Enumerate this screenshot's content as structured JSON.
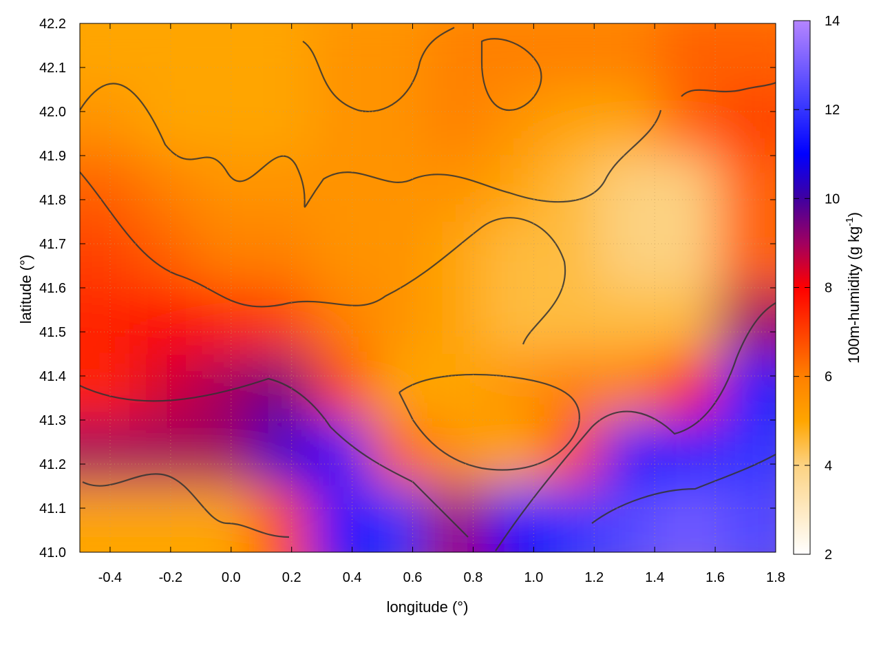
{
  "chart_data": {
    "type": "heatmap",
    "title": "",
    "xlabel": "longitude (°)",
    "ylabel": "latitude (°)",
    "colorbar_label": "100m-humidity (g kg",
    "colorbar_label_sup": "-1",
    "colorbar_label_end": ")",
    "xlim": [
      -0.5,
      1.8
    ],
    "ylim": [
      41.0,
      42.2
    ],
    "clim": [
      2,
      14
    ],
    "x_ticks": [
      "-0.4",
      "-0.2",
      "0.0",
      "0.2",
      "0.4",
      "0.6",
      "0.8",
      "1.0",
      "1.2",
      "1.4",
      "1.6",
      "1.8"
    ],
    "x_tick_values": [
      -0.4,
      -0.2,
      0.0,
      0.2,
      0.4,
      0.6,
      0.8,
      1.0,
      1.2,
      1.4,
      1.6,
      1.8
    ],
    "y_ticks": [
      "41.0",
      "41.1",
      "41.2",
      "41.3",
      "41.4",
      "41.5",
      "41.6",
      "41.7",
      "41.8",
      "41.9",
      "42.0",
      "42.1",
      "42.2"
    ],
    "y_tick_values": [
      41.0,
      41.1,
      41.2,
      41.3,
      41.4,
      41.5,
      41.6,
      41.7,
      41.8,
      41.9,
      42.0,
      42.1,
      42.2
    ],
    "colorbar_ticks": [
      "2",
      "4",
      "6",
      "8",
      "10",
      "12",
      "14"
    ],
    "colorbar_tick_values": [
      2,
      4,
      6,
      8,
      10,
      12,
      14
    ],
    "grid": true,
    "colormap": [
      {
        "v": 2,
        "color": "#ffffff"
      },
      {
        "v": 4,
        "color": "#fcd282"
      },
      {
        "v": 5,
        "color": "#ffa500"
      },
      {
        "v": 6,
        "color": "#ff8000"
      },
      {
        "v": 7,
        "color": "#ff4000"
      },
      {
        "v": 8,
        "color": "#ff0000"
      },
      {
        "v": 9,
        "color": "#a00060"
      },
      {
        "v": 10,
        "color": "#4000a0"
      },
      {
        "v": 11,
        "color": "#0000ff"
      },
      {
        "v": 12,
        "color": "#3535ff"
      },
      {
        "v": 14,
        "color": "#b585ff"
      }
    ],
    "grid_lon": [
      -0.404,
      -0.213,
      -0.021,
      0.171,
      0.362,
      0.554,
      0.746,
      0.938,
      1.129,
      1.321,
      1.513,
      1.704
    ],
    "grid_lat": [
      42.125,
      41.975,
      41.825,
      41.675,
      41.525,
      41.375,
      41.225,
      41.075
    ],
    "values": [
      [
        5.0,
        5.0,
        5.0,
        5.0,
        5.5,
        5.5,
        6.0,
        6.0,
        6.0,
        6.0,
        6.5,
        6.5
      ],
      [
        5.5,
        5.0,
        5.0,
        5.0,
        5.5,
        5.5,
        6.0,
        5.5,
        5.0,
        5.0,
        6.5,
        7.0
      ],
      [
        6.5,
        6.0,
        5.5,
        5.5,
        5.5,
        5.5,
        5.5,
        5.0,
        4.5,
        4.0,
        4.0,
        6.5
      ],
      [
        7.0,
        6.5,
        6.0,
        6.0,
        5.5,
        5.5,
        5.0,
        4.5,
        4.5,
        4.0,
        4.0,
        6.5
      ],
      [
        7.5,
        8.0,
        7.5,
        7.0,
        6.0,
        5.5,
        5.0,
        4.5,
        4.5,
        4.5,
        4.5,
        9.0
      ],
      [
        7.5,
        8.5,
        9.0,
        9.5,
        7.0,
        5.0,
        5.0,
        5.5,
        6.0,
        6.0,
        8.0,
        11.5
      ],
      [
        9.0,
        9.0,
        9.0,
        10.5,
        11.0,
        6.5,
        5.5,
        5.0,
        7.0,
        11.0,
        11.5,
        12.0
      ],
      [
        5.0,
        5.0,
        5.0,
        7.0,
        11.0,
        12.0,
        9.0,
        11.0,
        12.0,
        12.5,
        13.0,
        12.5
      ]
    ]
  }
}
